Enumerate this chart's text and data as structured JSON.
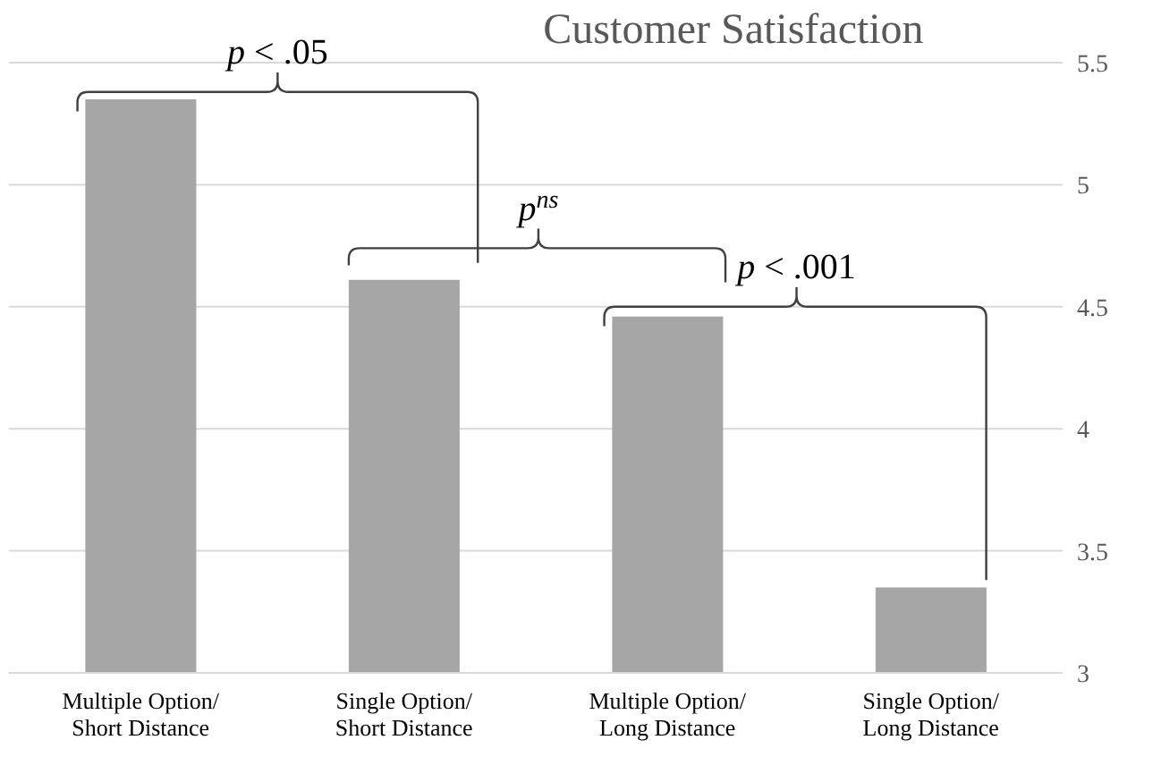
{
  "chart_data": {
    "type": "bar",
    "title": "Customer Satisfaction",
    "categories": [
      "Multiple Option/\nShort Distance",
      "Single Option/\nShort Distance",
      "Multiple Option/\nLong Distance",
      "Single Option/\nLong Distance"
    ],
    "values": [
      5.35,
      4.61,
      4.46,
      3.35
    ],
    "color": "#a6a6a6",
    "ylim": [
      3,
      5.5
    ],
    "yticks": [
      3,
      3.5,
      4,
      4.5,
      5,
      5.5
    ],
    "grid": "y",
    "annotations": [
      "p < .05",
      "p$^{ns}$",
      "p < .001"
    ]
  }
}
